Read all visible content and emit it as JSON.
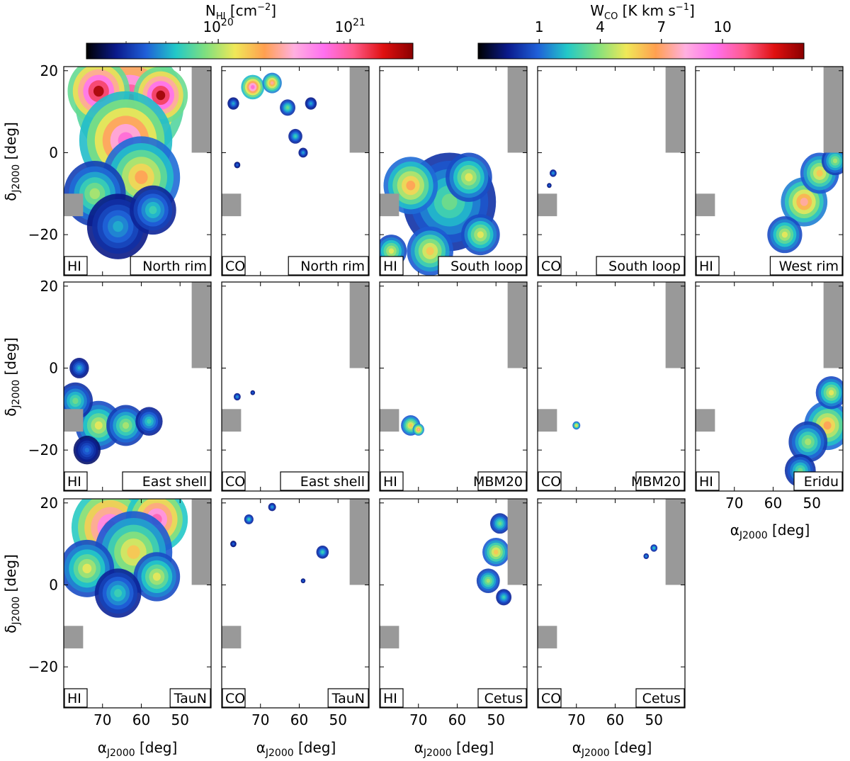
{
  "figure": {
    "colorbars": [
      {
        "label_main": "N",
        "label_sub": "HI",
        "label_unit": " [cm",
        "label_exp": "−2",
        "label_end": "]",
        "scale": "log",
        "range": [
          10000000000000000000,
          3000000000000000000000
        ],
        "ticks": [
          {
            "value": 100000000000000000000,
            "base": "10",
            "exp": "20"
          },
          {
            "value": 1000000000000000000000,
            "base": "10",
            "exp": "21"
          }
        ],
        "colors": [
          "#000000",
          "#0a1a8c",
          "#1f5fd8",
          "#22c8c8",
          "#7fe07f",
          "#f0e858",
          "#ffa050",
          "#ffb0e0",
          "#ff70f0",
          "#ff5a8a",
          "#e01010",
          "#8a0000"
        ]
      },
      {
        "label_main": "W",
        "label_sub": "CO",
        "label_unit": " [K km s",
        "label_exp": "−1",
        "label_end": "]",
        "scale": "linear",
        "range": [
          -2,
          14
        ],
        "ticks": [
          {
            "value": 1,
            "label": "1"
          },
          {
            "value": 4,
            "label": "4"
          },
          {
            "value": 7,
            "label": "7"
          },
          {
            "value": 10,
            "label": "10"
          }
        ],
        "colors": [
          "#000000",
          "#0a1a8c",
          "#1f5fd8",
          "#22c8c8",
          "#7fe07f",
          "#f0e858",
          "#ffa050",
          "#ffb0e0",
          "#ff70f0",
          "#ff5a8a",
          "#e01010",
          "#8a0000"
        ]
      }
    ],
    "axes": {
      "x_label_main": "α",
      "x_label_sub": "J2000",
      "x_label_unit": " [deg]",
      "y_label_main": "δ",
      "y_label_sub": "J2000",
      "y_label_unit": " [deg]",
      "x_ticks": [
        "70",
        "60",
        "50"
      ],
      "y_ticks": [
        "20",
        "0",
        "−20"
      ]
    }
  },
  "chart_data": {
    "type": "heatmap",
    "xlim": [
      80,
      42
    ],
    "ylim": [
      -30,
      21
    ],
    "x_ticks": [
      70,
      60,
      50
    ],
    "y_ticks": [
      20,
      0,
      -20
    ],
    "grey_mask_regions": [
      {
        "ra": [
          47,
          42
        ],
        "dec": [
          0,
          21
        ]
      },
      {
        "ra": [
          80,
          75
        ],
        "dec": [
          -15.5,
          -10
        ]
      }
    ],
    "panels": [
      {
        "tracer": "HI",
        "region": "North rim",
        "row": 0,
        "col": 0,
        "blobs": [
          {
            "ra": 63,
            "dec": 12,
            "r": 14,
            "level": 0.92
          },
          {
            "ra": 71,
            "dec": 15,
            "r": 8,
            "level": 0.97
          },
          {
            "ra": 55,
            "dec": 14,
            "r": 7,
            "level": 0.98
          },
          {
            "ra": 64,
            "dec": 3,
            "r": 12,
            "level": 0.75
          },
          {
            "ra": 60,
            "dec": -6,
            "r": 10,
            "level": 0.55
          },
          {
            "ra": 72,
            "dec": -10,
            "r": 8,
            "level": 0.4
          },
          {
            "ra": 66,
            "dec": -18,
            "r": 8,
            "level": 0.25
          },
          {
            "ra": 57,
            "dec": -14,
            "r": 6,
            "level": 0.3
          }
        ]
      },
      {
        "tracer": "CO",
        "region": "North rim",
        "row": 0,
        "col": 1,
        "blobs": [
          {
            "ra": 72,
            "dec": 16,
            "r": 3,
            "level": 0.75
          },
          {
            "ra": 67,
            "dec": 17,
            "r": 2.5,
            "level": 0.6
          },
          {
            "ra": 63,
            "dec": 11,
            "r": 2,
            "level": 0.35
          },
          {
            "ra": 61,
            "dec": 4,
            "r": 1.8,
            "level": 0.3
          },
          {
            "ra": 57,
            "dec": 12,
            "r": 1.5,
            "level": 0.25
          },
          {
            "ra": 59,
            "dec": 0,
            "r": 1.2,
            "level": 0.25
          },
          {
            "ra": 77,
            "dec": 12,
            "r": 1.5,
            "level": 0.25
          },
          {
            "ra": 76,
            "dec": -3,
            "r": 0.8,
            "level": 0.2
          }
        ]
      },
      {
        "tracer": "HI",
        "region": "South loop",
        "row": 0,
        "col": 2,
        "blobs": [
          {
            "ra": 62,
            "dec": -12,
            "r": 12,
            "level": 0.35
          },
          {
            "ra": 72,
            "dec": -8,
            "r": 7,
            "level": 0.55
          },
          {
            "ra": 57,
            "dec": -6,
            "r": 6,
            "level": 0.45
          },
          {
            "ra": 67,
            "dec": -24,
            "r": 6,
            "level": 0.5
          },
          {
            "ra": 54,
            "dec": -20,
            "r": 5,
            "level": 0.45
          },
          {
            "ra": 77,
            "dec": -24,
            "r": 4,
            "level": 0.45
          }
        ]
      },
      {
        "tracer": "CO",
        "region": "South loop",
        "row": 0,
        "col": 3,
        "blobs": [
          {
            "ra": 76,
            "dec": -5,
            "r": 0.9,
            "level": 0.25
          },
          {
            "ra": 77,
            "dec": -8,
            "r": 0.6,
            "level": 0.2
          }
        ]
      },
      {
        "tracer": "HI",
        "region": "West rim",
        "row": 0,
        "col": 4,
        "blobs": [
          {
            "ra": 52,
            "dec": -12,
            "r": 6,
            "level": 0.6
          },
          {
            "ra": 48,
            "dec": -5,
            "r": 5,
            "level": 0.5
          },
          {
            "ra": 57,
            "dec": -20,
            "r": 4.5,
            "level": 0.45
          },
          {
            "ra": 44,
            "dec": -2,
            "r": 3.5,
            "level": 0.4
          }
        ]
      },
      {
        "tracer": "HI",
        "region": "East shell",
        "row": 1,
        "col": 0,
        "blobs": [
          {
            "ra": 71,
            "dec": -14,
            "r": 6,
            "level": 0.45
          },
          {
            "ra": 64,
            "dec": -14,
            "r": 5,
            "level": 0.4
          },
          {
            "ra": 77,
            "dec": -8,
            "r": 4.5,
            "level": 0.35
          },
          {
            "ra": 58,
            "dec": -13,
            "r": 3.5,
            "level": 0.3
          },
          {
            "ra": 76,
            "dec": 0,
            "r": 2.5,
            "level": 0.25
          },
          {
            "ra": 74,
            "dec": -20,
            "r": 3.5,
            "level": 0.2
          }
        ]
      },
      {
        "tracer": "CO",
        "region": "East shell",
        "row": 1,
        "col": 1,
        "blobs": [
          {
            "ra": 76,
            "dec": -7,
            "r": 0.9,
            "level": 0.25
          },
          {
            "ra": 72,
            "dec": -6,
            "r": 0.6,
            "level": 0.2
          }
        ]
      },
      {
        "tracer": "HI",
        "region": "MBM20",
        "row": 1,
        "col": 2,
        "blobs": [
          {
            "ra": 72,
            "dec": -14,
            "r": 2.5,
            "level": 0.5
          },
          {
            "ra": 70,
            "dec": -15,
            "r": 1.5,
            "level": 0.6
          }
        ]
      },
      {
        "tracer": "CO",
        "region": "MBM20",
        "row": 1,
        "col": 3,
        "blobs": [
          {
            "ra": 70,
            "dec": -14,
            "r": 1,
            "level": 0.5
          }
        ]
      },
      {
        "tracer": "HI",
        "region": "Eridu",
        "row": 1,
        "col": 4,
        "blobs": [
          {
            "ra": 46,
            "dec": -14,
            "r": 6,
            "level": 0.55
          },
          {
            "ra": 51,
            "dec": -18,
            "r": 5,
            "level": 0.4
          },
          {
            "ra": 45,
            "dec": -6,
            "r": 4,
            "level": 0.45
          },
          {
            "ra": 53,
            "dec": -25,
            "r": 4,
            "level": 0.35
          }
        ]
      },
      {
        "tracer": "HI",
        "region": "TauN",
        "row": 2,
        "col": 0,
        "blobs": [
          {
            "ra": 68,
            "dec": 14,
            "r": 10,
            "level": 0.8
          },
          {
            "ra": 56,
            "dec": 16,
            "r": 8,
            "level": 0.78
          },
          {
            "ra": 62,
            "dec": 8,
            "r": 10,
            "level": 0.5
          },
          {
            "ra": 74,
            "dec": 4,
            "r": 7,
            "level": 0.45
          },
          {
            "ra": 56,
            "dec": 2,
            "r": 6,
            "level": 0.45
          },
          {
            "ra": 66,
            "dec": -2,
            "r": 6,
            "level": 0.3
          }
        ]
      },
      {
        "tracer": "CO",
        "region": "TauN",
        "row": 2,
        "col": 1,
        "blobs": [
          {
            "ra": 54,
            "dec": 8,
            "r": 1.6,
            "level": 0.3
          },
          {
            "ra": 73,
            "dec": 16,
            "r": 1.2,
            "level": 0.3
          },
          {
            "ra": 67,
            "dec": 19,
            "r": 1,
            "level": 0.25
          },
          {
            "ra": 77,
            "dec": 10,
            "r": 0.8,
            "level": 0.2
          },
          {
            "ra": 59,
            "dec": 1,
            "r": 0.6,
            "level": 0.2
          }
        ]
      },
      {
        "tracer": "HI",
        "region": "Cetus",
        "row": 2,
        "col": 2,
        "blobs": [
          {
            "ra": 50,
            "dec": 8,
            "r": 3.5,
            "level": 0.5
          },
          {
            "ra": 52,
            "dec": 1,
            "r": 3,
            "level": 0.4
          },
          {
            "ra": 49,
            "dec": 15,
            "r": 2.5,
            "level": 0.35
          },
          {
            "ra": 48,
            "dec": -3,
            "r": 2,
            "level": 0.3
          }
        ]
      },
      {
        "tracer": "CO",
        "region": "Cetus",
        "row": 2,
        "col": 3,
        "blobs": [
          {
            "ra": 50,
            "dec": 9,
            "r": 0.9,
            "level": 0.3
          },
          {
            "ra": 52,
            "dec": 7,
            "r": 0.7,
            "level": 0.25
          }
        ]
      }
    ],
    "axis_ticks_visible_panel": {
      "row": 1,
      "col": 4,
      "x_ticks": [
        70,
        60,
        50
      ]
    }
  }
}
